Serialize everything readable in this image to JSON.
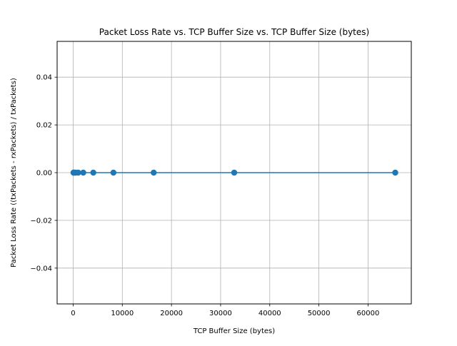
{
  "chart_data": {
    "type": "line",
    "title": "Packet Loss Rate vs. TCP Buffer Size vs. TCP Buffer Size (bytes)",
    "xlabel": "TCP Buffer Size (bytes)",
    "ylabel": "Packet Loss Rate ((txPackets - rxPackets) / txPackets)",
    "xlim": [
      -3266,
      68802
    ],
    "ylim": [
      -0.055,
      0.055
    ],
    "xticks": [
      0,
      10000,
      20000,
      30000,
      40000,
      50000,
      60000
    ],
    "xtick_labels": [
      "0",
      "10000",
      "20000",
      "30000",
      "40000",
      "50000",
      "60000"
    ],
    "yticks": [
      -0.04,
      -0.02,
      0.0,
      0.02,
      0.04
    ],
    "ytick_labels": [
      "−0.04",
      "−0.02",
      "0.00",
      "0.02",
      "0.04"
    ],
    "grid": true,
    "legend": "none",
    "series": [
      {
        "color": "#1f77b4",
        "marker": "circle",
        "x": [
          64,
          128,
          256,
          512,
          1024,
          2048,
          4096,
          8192,
          16384,
          32768,
          65536
        ],
        "y": [
          0,
          0,
          0,
          0,
          0,
          0,
          0,
          0,
          0,
          0,
          0
        ]
      }
    ]
  }
}
